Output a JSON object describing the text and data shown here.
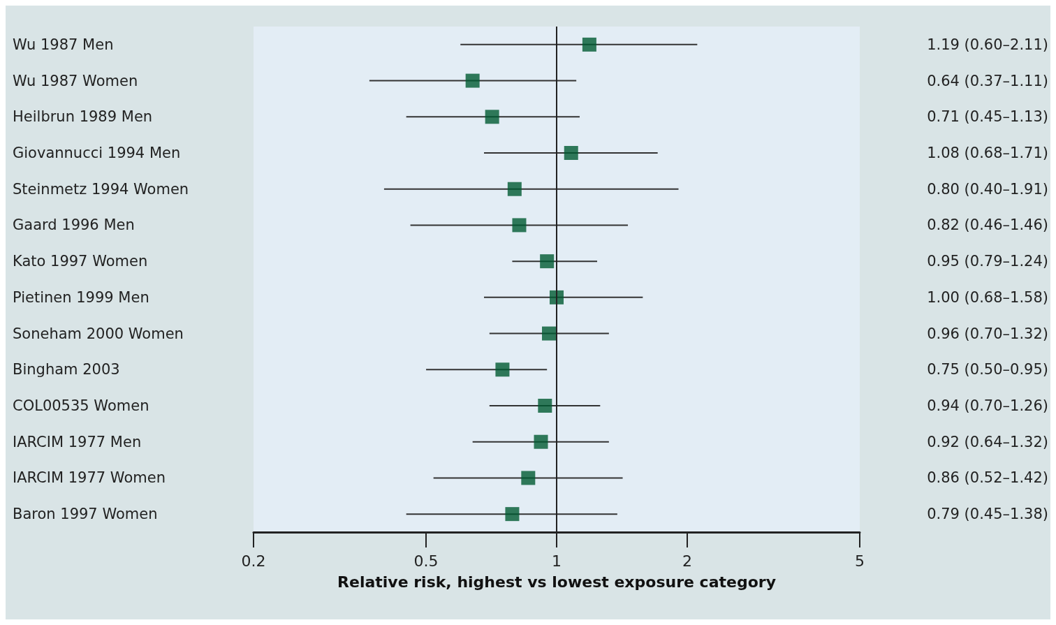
{
  "chart_data": {
    "type": "scatter",
    "orientation": "horizontal",
    "xlabel": "Relative risk, highest vs lowest exposure category",
    "categories": [
      "Wu 1987 Men",
      "Wu 1987 Women",
      "Heilbrun 1989 Men",
      "Giovannucci 1994 Men",
      "Steinmetz 1994 Women",
      "Gaard 1996 Men",
      "Kato 1997 Women",
      "Pietinen 1999 Men",
      "Soneham 2000 Women",
      "Bingham 2003",
      "COL00535 Women",
      "IARCIM 1977 Men",
      "IARCIM 1977 Women",
      "Baron 1997 Women"
    ],
    "values": [
      1.19,
      0.64,
      0.71,
      1.08,
      0.8,
      0.82,
      0.95,
      1.0,
      0.96,
      0.75,
      0.94,
      0.92,
      0.86,
      0.79
    ],
    "errors": [
      [
        0.6,
        2.11
      ],
      [
        0.37,
        1.11
      ],
      [
        0.45,
        1.13
      ],
      [
        0.68,
        1.71
      ],
      [
        0.4,
        1.91
      ],
      [
        0.46,
        1.46
      ],
      [
        0.79,
        1.24
      ],
      [
        0.68,
        1.58
      ],
      [
        0.7,
        1.32
      ],
      [
        0.5,
        0.95
      ],
      [
        0.7,
        1.26
      ],
      [
        0.64,
        1.32
      ],
      [
        0.52,
        1.42
      ],
      [
        0.45,
        1.38
      ]
    ],
    "value_labels": [
      "1.19 (0.60–2.11)",
      "0.64 (0.37–1.11)",
      "0.71 (0.45–1.13)",
      "1.08 (0.68–1.71)",
      "0.80 (0.40–1.91)",
      "0.82 (0.46–1.46)",
      "0.95 (0.79–1.24)",
      "1.00 (0.68–1.58)",
      "0.96 (0.70–1.32)",
      "0.75 (0.50–0.95)",
      "0.94 (0.70–1.26)",
      "0.92 (0.64–1.32)",
      "0.86 (0.52–1.42)",
      "0.79 (0.45–1.38)"
    ],
    "color": "#005a32",
    "marker": "square",
    "log": "x",
    "xlim": [
      0.2,
      5
    ],
    "xticks": [
      0.2,
      0.5,
      1,
      2,
      5
    ],
    "ref_lines": [
      {
        "axis": "x",
        "value": 1,
        "color": "#222222"
      }
    ],
    "grid": false
  }
}
